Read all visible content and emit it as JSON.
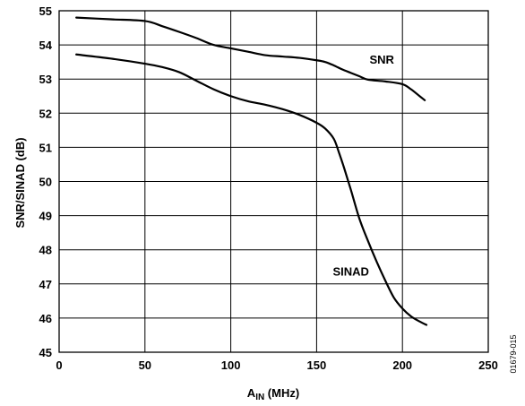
{
  "chart_data": {
    "type": "line",
    "title": "",
    "xlabel": {
      "main": "A",
      "sub": "IN",
      "suffix": " (MHz)"
    },
    "ylabel": "SNR/SINAD (dB)",
    "xlim": [
      0,
      250
    ],
    "ylim": [
      45,
      55
    ],
    "xticks": [
      0,
      50,
      100,
      150,
      200,
      250
    ],
    "yticks": [
      45,
      46,
      47,
      48,
      49,
      50,
      51,
      52,
      53,
      54,
      55
    ],
    "grid": true,
    "figure_id": "01679-015",
    "series": [
      {
        "name": "SNR",
        "color": "#000000",
        "x": [
          10,
          30,
          50,
          60,
          70,
          80,
          90,
          100,
          110,
          120,
          130,
          140,
          150,
          155,
          160,
          165,
          170,
          175,
          180,
          190,
          200,
          205,
          210,
          213
        ],
        "y": [
          54.8,
          54.75,
          54.7,
          54.55,
          54.38,
          54.2,
          54.0,
          53.9,
          53.8,
          53.7,
          53.66,
          53.62,
          53.55,
          53.5,
          53.4,
          53.28,
          53.18,
          53.08,
          52.98,
          52.93,
          52.85,
          52.7,
          52.5,
          52.38
        ]
      },
      {
        "name": "SINAD",
        "color": "#000000",
        "x": [
          10,
          30,
          50,
          60,
          70,
          80,
          90,
          100,
          110,
          120,
          130,
          140,
          150,
          155,
          160,
          163,
          166,
          170,
          175,
          180,
          185,
          190,
          195,
          200,
          205,
          210,
          214
        ],
        "y": [
          53.72,
          53.6,
          53.45,
          53.35,
          53.2,
          52.95,
          52.7,
          52.5,
          52.35,
          52.25,
          52.12,
          51.95,
          51.72,
          51.55,
          51.25,
          50.85,
          50.4,
          49.75,
          48.9,
          48.25,
          47.65,
          47.1,
          46.6,
          46.28,
          46.05,
          45.9,
          45.8
        ]
      }
    ],
    "annotations": [
      {
        "text": "SNR",
        "x": 188,
        "y": 53.45
      },
      {
        "text": "SINAD",
        "x": 170,
        "y": 47.25
      }
    ]
  }
}
